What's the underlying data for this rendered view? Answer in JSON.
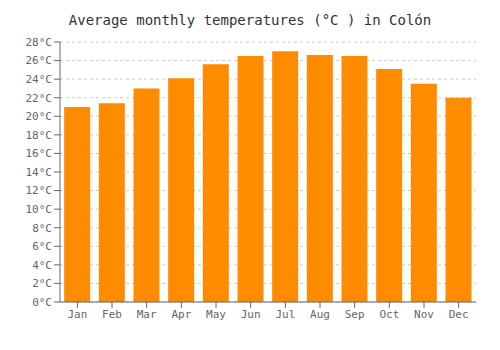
{
  "chart_data": {
    "type": "bar",
    "title": "Average monthly temperatures (°C ) in Colón",
    "categories": [
      "Jan",
      "Feb",
      "Mar",
      "Apr",
      "May",
      "Jun",
      "Jul",
      "Aug",
      "Sep",
      "Oct",
      "Nov",
      "Dec"
    ],
    "values": [
      21.0,
      21.4,
      23.0,
      24.1,
      25.6,
      26.5,
      27.0,
      26.6,
      26.5,
      25.1,
      23.5,
      22.0
    ],
    "color": "#FF8C00",
    "ylim": [
      0,
      28
    ],
    "yticks": [
      {
        "value": 0,
        "label": "0°C"
      },
      {
        "value": 2,
        "label": "2°C"
      },
      {
        "value": 4,
        "label": "4°C"
      },
      {
        "value": 6,
        "label": "6°C"
      },
      {
        "value": 8,
        "label": "8°C"
      },
      {
        "value": 10,
        "label": "10°C"
      },
      {
        "value": 12,
        "label": "12°C"
      },
      {
        "value": 14,
        "label": "14°C"
      },
      {
        "value": 16,
        "label": "16°C"
      },
      {
        "value": 18,
        "label": "18°C"
      },
      {
        "value": 20,
        "label": "20°C"
      },
      {
        "value": 22,
        "label": "22°C"
      },
      {
        "value": 24,
        "label": "24°C"
      },
      {
        "value": 26,
        "label": "26°C"
      },
      {
        "value": 28,
        "label": "28°C"
      }
    ],
    "grid": true
  }
}
